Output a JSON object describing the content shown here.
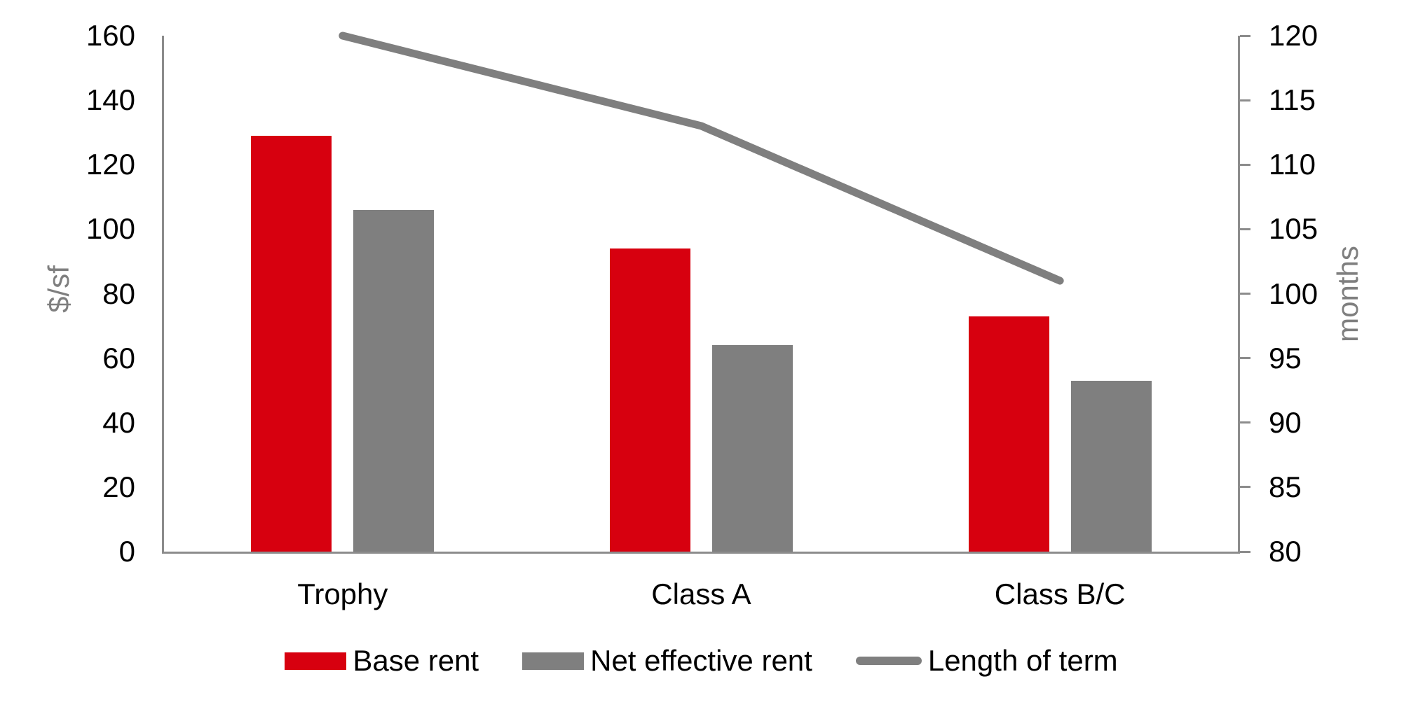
{
  "chart_data": {
    "type": "combo-bar-line",
    "title": "",
    "categories": [
      "Trophy",
      "Class A",
      "Class B/C"
    ],
    "series": [
      {
        "name": "Base rent",
        "chart_type": "bar",
        "axis": "left",
        "color": "#d7000f",
        "values": [
          129,
          94,
          73
        ]
      },
      {
        "name": "Net effective rent",
        "chart_type": "bar",
        "axis": "left",
        "color": "#7f7f7f",
        "values": [
          106,
          64,
          53
        ]
      },
      {
        "name": "Length of term",
        "chart_type": "line",
        "axis": "right",
        "color": "#7f7f7f",
        "values": [
          120,
          113,
          101
        ]
      }
    ],
    "left_axis": {
      "title": "$/sf",
      "min": 0,
      "max": 160,
      "step": 20,
      "tick_labels": [
        "0",
        "20",
        "40",
        "60",
        "80",
        "100",
        "120",
        "140",
        "160"
      ]
    },
    "right_axis": {
      "title": "months",
      "min": 80,
      "max": 120,
      "step": 5,
      "tick_labels": [
        "80",
        "85",
        "90",
        "95",
        "100",
        "105",
        "110",
        "115",
        "120"
      ]
    },
    "legend_position": "bottom",
    "grid": false
  },
  "colors": {
    "bar_red": "#d7000f",
    "bar_gray": "#7f7f7f",
    "line_gray": "#7f7f7f",
    "axis_line": "#8c8c8c",
    "axis_title_text": "#7f7f7f",
    "tick_text": "#000000",
    "background": "#ffffff"
  }
}
